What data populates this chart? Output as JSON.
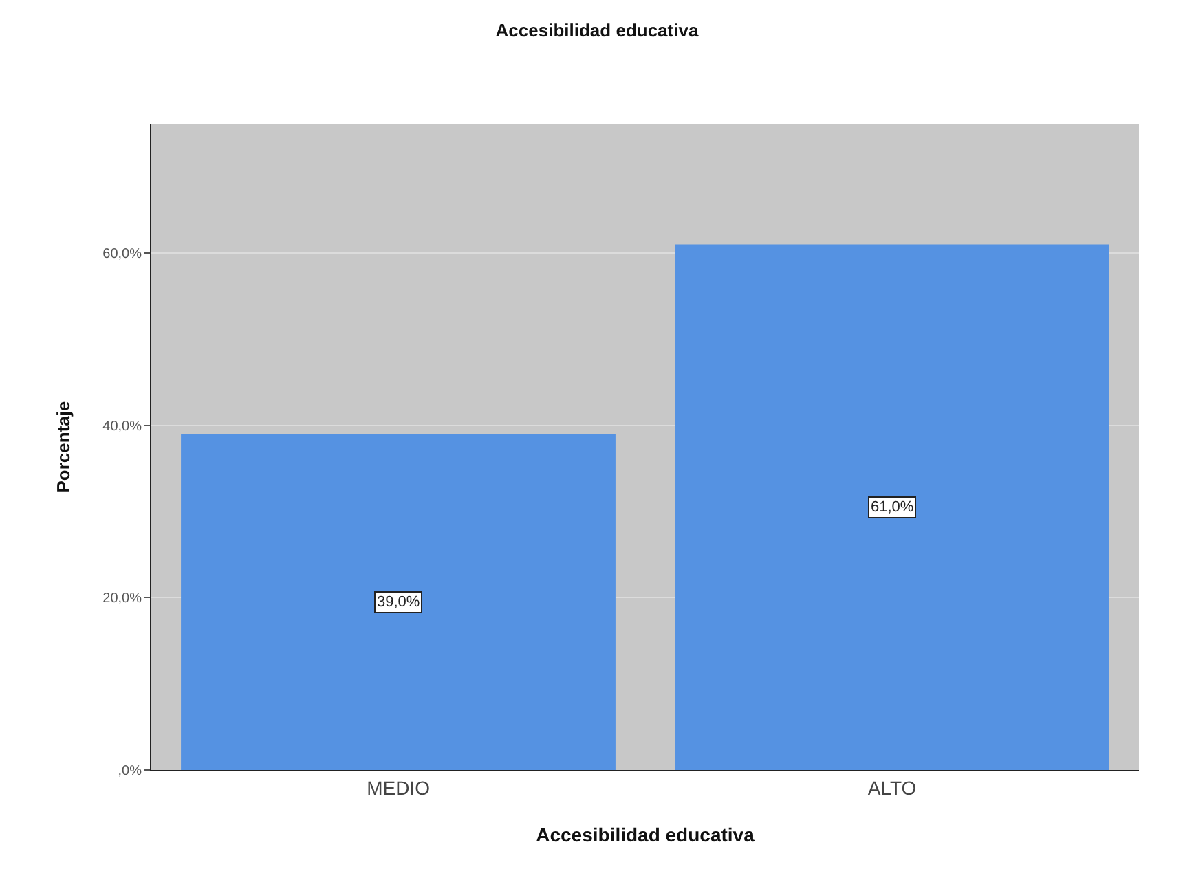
{
  "chart_data": {
    "type": "bar",
    "title": "Accesibilidad educativa",
    "xlabel": "Accesibilidad educativa",
    "ylabel": "Porcentaje",
    "categories": [
      "MEDIO",
      "ALTO"
    ],
    "values": [
      39.0,
      61.0
    ],
    "value_labels": [
      "39,0%",
      "61,0%"
    ],
    "color": "#5592e2",
    "ylim": [
      0,
      75
    ],
    "yticks": [
      {
        "value": 0,
        "label": ",0%"
      },
      {
        "value": 20,
        "label": "20,0%"
      },
      {
        "value": 40,
        "label": "40,0%"
      },
      {
        "value": 60,
        "label": "60,0%"
      }
    ],
    "grid": "y"
  }
}
